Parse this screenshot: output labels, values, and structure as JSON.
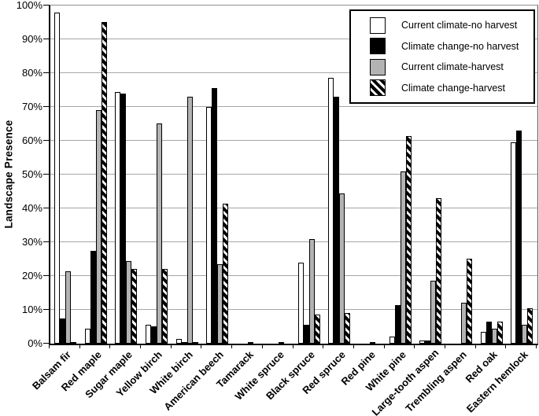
{
  "figure": {
    "ylabel": "Landscape Presence"
  },
  "chart_data": {
    "type": "bar",
    "title": "",
    "xlabel": "",
    "ylabel": "Landscape Presence",
    "ylim": [
      0,
      100
    ],
    "y_tick_step": 10,
    "y_tick_suffix": "%",
    "grid": "horizontal",
    "legend_position": "top-right-inside",
    "categories": [
      "Balsam fir",
      "Red maple",
      "Sugar maple",
      "Yellow birch",
      "White birch",
      "American beech",
      "Tamarack",
      "White spruce",
      "Black spruce",
      "Red spruce",
      "Red pine",
      "White pine",
      "Large-tooth aspen",
      "Trembling aspen",
      "Red oak",
      "Eastern hemlock"
    ],
    "series": [
      {
        "name": "Current climate-no harvest",
        "pattern": "white",
        "values": [
          98,
          4.5,
          74.5,
          5.5,
          1.5,
          70,
          0,
          0,
          24,
          78.5,
          0,
          2,
          1,
          0,
          3.5,
          59.5
        ]
      },
      {
        "name": "Climate change-no harvest",
        "pattern": "black",
        "values": [
          7.5,
          27.5,
          74,
          5,
          0.5,
          75.5,
          0,
          0,
          5.5,
          73,
          0,
          11.5,
          1,
          0,
          6.5,
          63
        ]
      },
      {
        "name": "Current climate-harvest",
        "pattern": "gray",
        "values": [
          21.5,
          69,
          24.5,
          65,
          73,
          23.5,
          0.5,
          0.5,
          31,
          44.5,
          0.3,
          51,
          18.5,
          12,
          4.5,
          5.5
        ]
      },
      {
        "name": "Climate change-harvest",
        "pattern": "hatch",
        "values": [
          0.5,
          95,
          22,
          22,
          0.5,
          41.5,
          0,
          0,
          8.5,
          9,
          0,
          61.5,
          43,
          25,
          6.5,
          10.5
        ]
      }
    ],
    "colors": {
      "bar_white": "#ffffff",
      "bar_black": "#000000",
      "bar_gray": "#b3b3b3",
      "hatch_stripe": "#000000",
      "gridline": "#a6a6a6",
      "axis": "#000000"
    }
  }
}
